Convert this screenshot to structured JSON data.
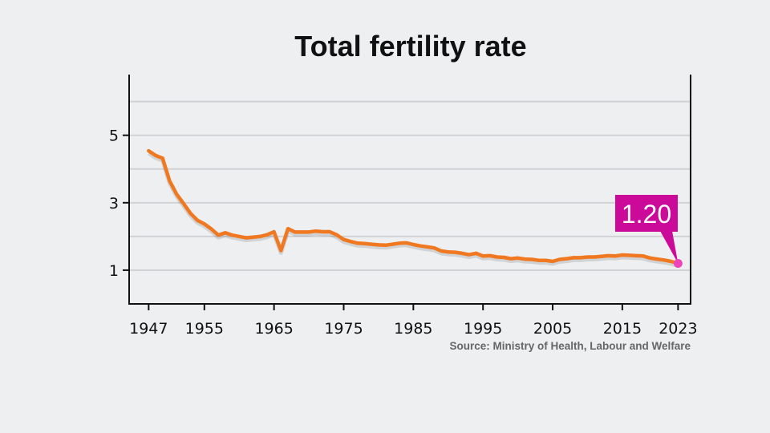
{
  "chart_data": {
    "type": "line",
    "title": "Total fertility rate",
    "source": "Source: Ministry of Health, Labour and Welfare",
    "xlim": [
      1944.2,
      2024.8
    ],
    "ylim": [
      0,
      6.8
    ],
    "x_ticks": [
      1947,
      1955,
      1965,
      1975,
      1985,
      1995,
      2005,
      2015,
      2023
    ],
    "y_ticks": [
      1,
      3,
      5
    ],
    "gridlines": [
      1,
      2,
      3,
      4,
      5,
      6
    ],
    "grid": true,
    "colors": {
      "background": "#eeeff1",
      "line": "#f07820",
      "annotation": "#cc0a99",
      "point": "#ee44bb",
      "grid": "#d0d2d5"
    },
    "annotation": {
      "x": 2023,
      "y": 1.2,
      "label": "1.20"
    },
    "series": [
      {
        "x": [
          1947,
          1948,
          1949,
          1950,
          1951,
          1952,
          1953,
          1954,
          1955,
          1956,
          1957,
          1958,
          1959,
          1960,
          1961,
          1962,
          1963,
          1964,
          1965,
          1966,
          1967,
          1968,
          1969,
          1970,
          1971,
          1972,
          1973,
          1974,
          1975,
          1976,
          1977,
          1978,
          1979,
          1980,
          1981,
          1982,
          1983,
          1984,
          1985,
          1986,
          1987,
          1988,
          1989,
          1990,
          1991,
          1992,
          1993,
          1994,
          1995,
          1996,
          1997,
          1998,
          1999,
          2000,
          2001,
          2002,
          2003,
          2004,
          2005,
          2006,
          2007,
          2008,
          2009,
          2010,
          2011,
          2012,
          2013,
          2014,
          2015,
          2016,
          2017,
          2018,
          2019,
          2020,
          2021,
          2022,
          2023
        ],
        "y": [
          4.54,
          4.4,
          4.32,
          3.65,
          3.26,
          2.98,
          2.69,
          2.48,
          2.37,
          2.22,
          2.04,
          2.11,
          2.04,
          2.0,
          1.96,
          1.98,
          2.0,
          2.05,
          2.14,
          1.58,
          2.23,
          2.13,
          2.13,
          2.13,
          2.16,
          2.14,
          2.14,
          2.05,
          1.91,
          1.85,
          1.8,
          1.79,
          1.77,
          1.75,
          1.74,
          1.77,
          1.8,
          1.81,
          1.76,
          1.72,
          1.69,
          1.66,
          1.57,
          1.54,
          1.53,
          1.5,
          1.46,
          1.5,
          1.42,
          1.43,
          1.39,
          1.38,
          1.34,
          1.36,
          1.33,
          1.32,
          1.29,
          1.29,
          1.26,
          1.32,
          1.34,
          1.37,
          1.37,
          1.39,
          1.39,
          1.41,
          1.43,
          1.42,
          1.45,
          1.44,
          1.43,
          1.42,
          1.36,
          1.33,
          1.3,
          1.26,
          1.2
        ]
      }
    ]
  }
}
